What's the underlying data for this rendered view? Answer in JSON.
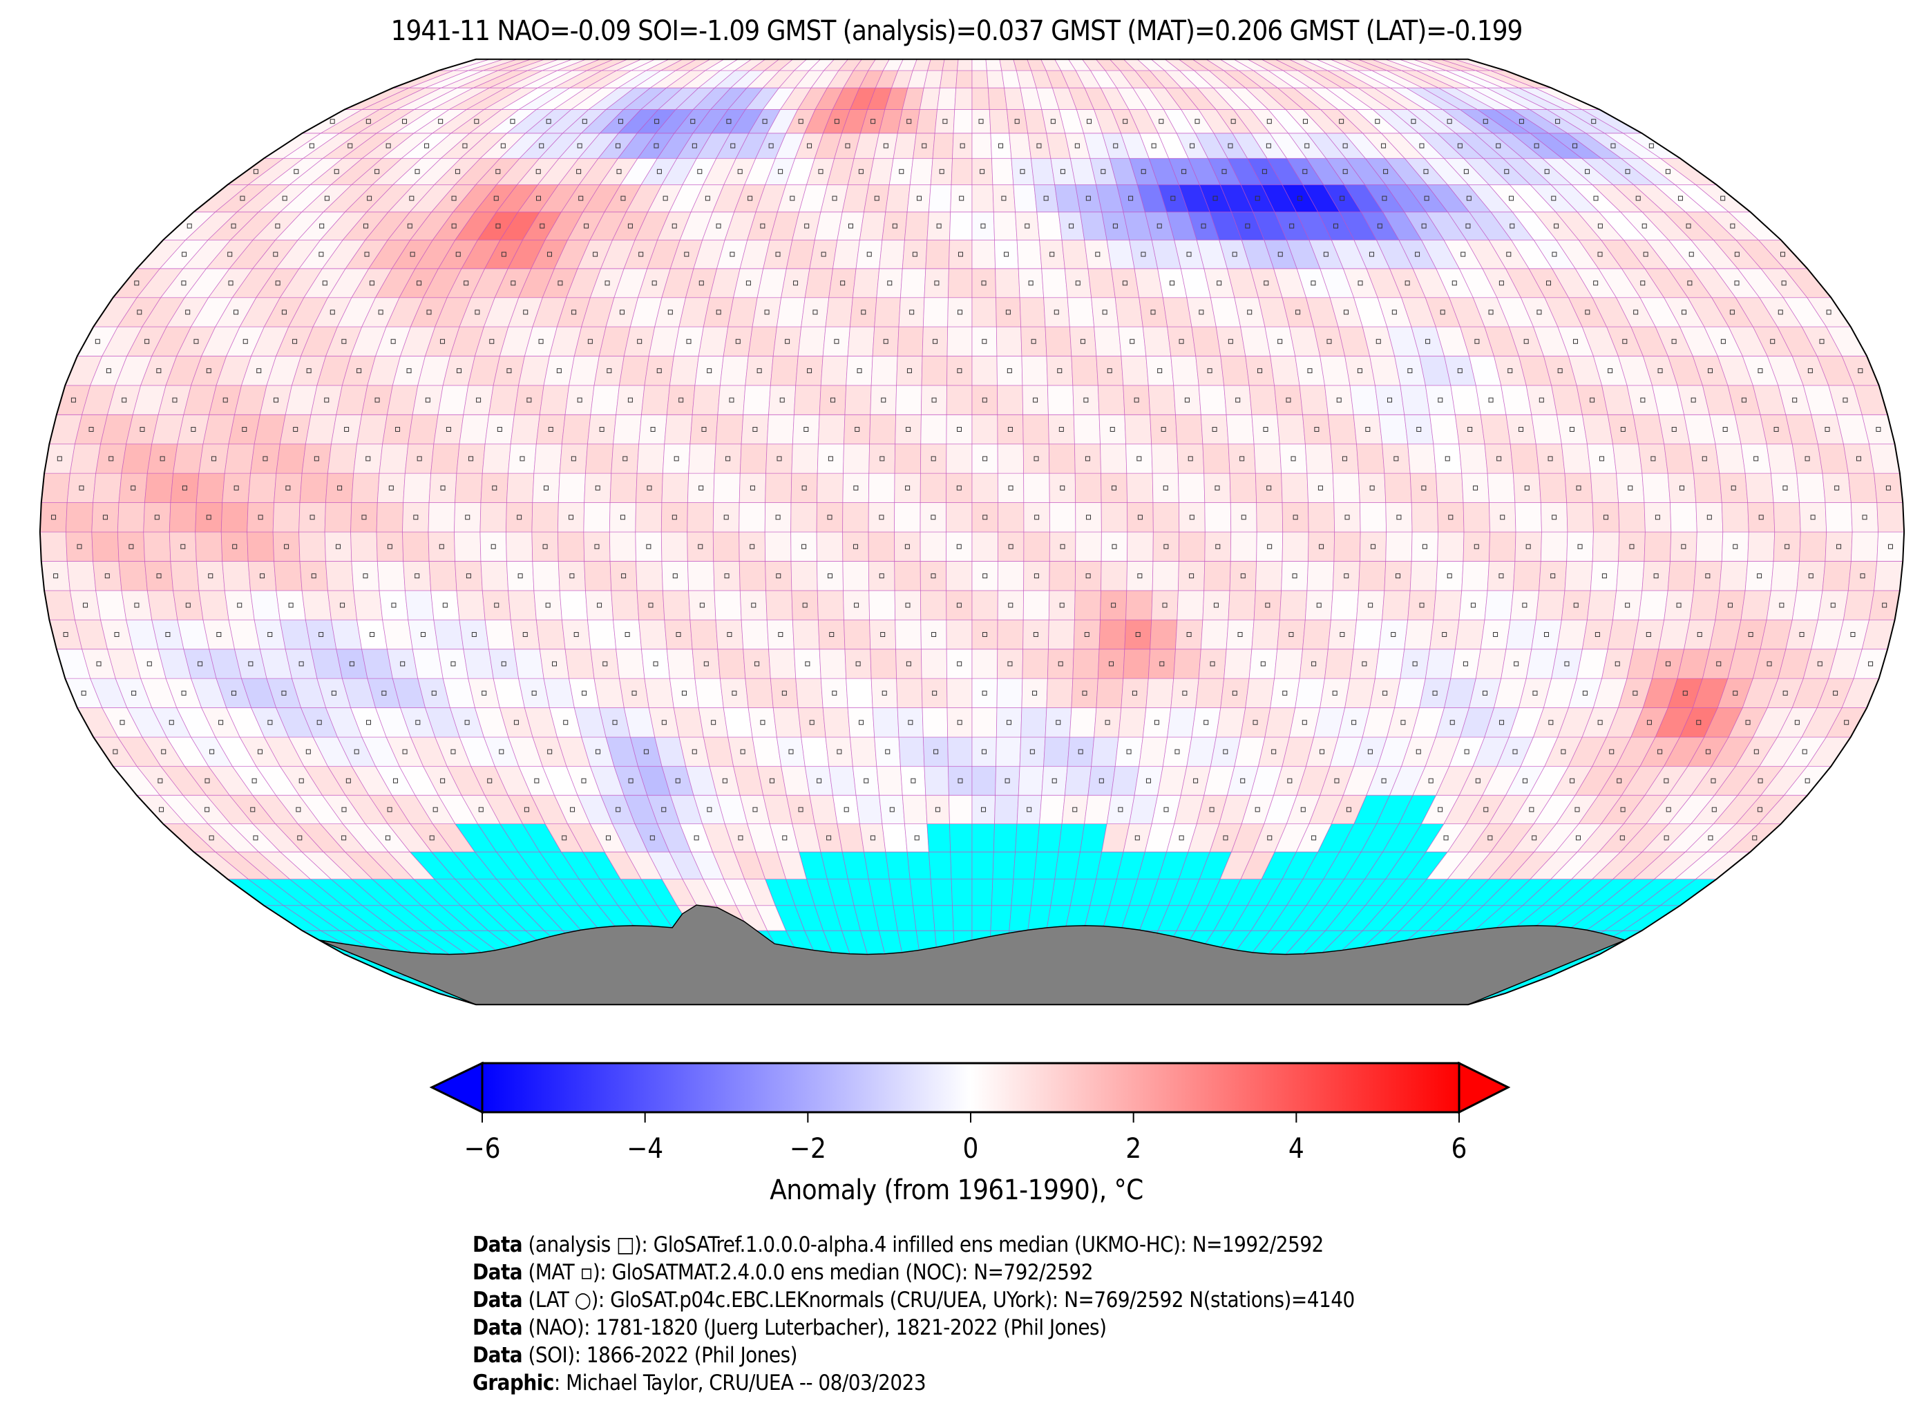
{
  "title": "1941-11 NAO=-0.09 SOI=-1.09 GMST (analysis)=0.037 GMST (MAT)=0.206 GMST (LAT)=-0.199",
  "colorbar": {
    "label": "Anomaly (from 1961-1990), °C",
    "ticks": [
      "−6",
      "−4",
      "−2",
      "0",
      "2",
      "4",
      "6"
    ],
    "range": [
      -6,
      6
    ],
    "cmap": {
      "low": "#0000ff",
      "mid": "#ffffff",
      "high": "#ff0000"
    },
    "extend": "both"
  },
  "map": {
    "projection": "Robinson",
    "grid_resolution_deg": 5,
    "missing_color": "#00ffff",
    "land_mask_color": "#808080",
    "grid_line_color": "#c050c0"
  },
  "footer": [
    {
      "bold": "Data",
      "text": " (analysis □): GloSATref.1.0.0.0-alpha.4 infilled ens median (UKMO-HC): N=1992/2592"
    },
    {
      "bold": "Data",
      "text": " (MAT ▫): GloSATMAT.2.4.0.0 ens median (NOC): N=792/2592"
    },
    {
      "bold": "Data",
      "text": " (LAT ○): GloSAT.p04c.EBC.LEKnormals (CRU/UEA, UYork): N=769/2592 N(stations)=4140"
    },
    {
      "bold": "Data",
      "text": " (NAO): 1781-1820 (Juerg Luterbacher), 1821-2022 (Phil Jones)"
    },
    {
      "bold": "Data",
      "text": " (SOI): 1866-2022 (Phil Jones)"
    },
    {
      "bold": "Graphic",
      "text": ": Michael Taylor, CRU/UEA -- 08/03/2023"
    }
  ]
}
